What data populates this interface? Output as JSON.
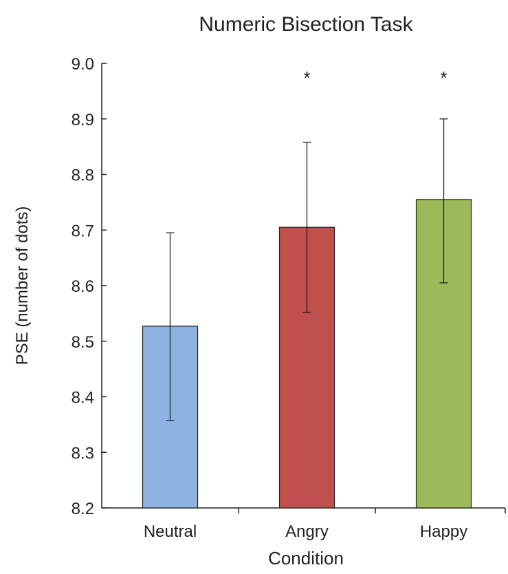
{
  "chart_data": {
    "type": "bar",
    "title": "Numeric Bisection Task",
    "xlabel": "Condition",
    "ylabel": "PSE (number of dots)",
    "categories": [
      "Neutral",
      "Angry",
      "Happy"
    ],
    "values": [
      8.527,
      8.705,
      8.755
    ],
    "error_low": [
      8.357,
      8.552,
      8.605
    ],
    "error_high": [
      8.695,
      8.858,
      8.9
    ],
    "significance": [
      "",
      "*",
      "*"
    ],
    "colors": [
      "#8db3e2",
      "#c0504d",
      "#9bbb59"
    ],
    "ylim": [
      8.2,
      9.0
    ],
    "yticks": [
      "8.2",
      "8.3",
      "8.4",
      "8.5",
      "8.6",
      "8.7",
      "8.8",
      "8.9",
      "9.0"
    ],
    "grid": false,
    "legend": "none"
  }
}
